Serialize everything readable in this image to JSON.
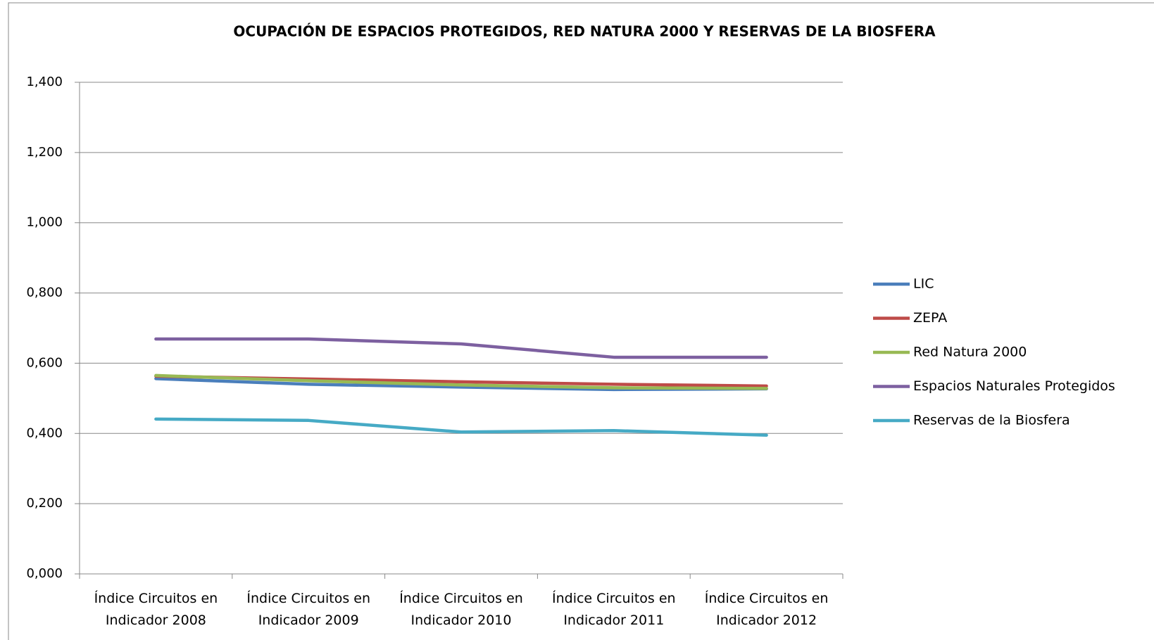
{
  "chart_data": {
    "type": "line",
    "title": "OCUPACIÓN DE ESPACIOS PROTEGIDOS, RED NATURA 2000  Y RESERVAS DE LA BIOSFERA",
    "categories": [
      "Índice Circuitos en Indicador 2008",
      "Índice Circuitos en Indicador 2009",
      "Índice Circuitos en Indicador 2010",
      "Índice Circuitos en Indicador 2011",
      "Índice Circuitos en Indicador 2012"
    ],
    "series": [
      {
        "name": "LIC",
        "color": "#4a7ebb",
        "values": [
          0.556,
          0.54,
          0.532,
          0.525,
          0.527
        ]
      },
      {
        "name": "ZEPA",
        "color": "#be4b48",
        "values": [
          0.563,
          0.555,
          0.547,
          0.54,
          0.535
        ]
      },
      {
        "name": "Red Natura 2000",
        "color": "#98b954",
        "values": [
          0.565,
          0.55,
          0.538,
          0.53,
          0.528
        ]
      },
      {
        "name": "Espacios Naturales Protegidos",
        "color": "#7d60a0",
        "values": [
          0.669,
          0.669,
          0.655,
          0.617,
          0.617
        ]
      },
      {
        "name": "Reservas de la Biosfera",
        "color": "#46aac5",
        "values": [
          0.441,
          0.437,
          0.404,
          0.408,
          0.395
        ]
      }
    ],
    "ylim": [
      0,
      1.4
    ],
    "yticks": [
      {
        "value": 0,
        "label": "0,000"
      },
      {
        "value": 0.2,
        "label": "0,200"
      },
      {
        "value": 0.4,
        "label": "0,400"
      },
      {
        "value": 0.6,
        "label": "0,600"
      },
      {
        "value": 0.8,
        "label": "0,800"
      },
      {
        "value": 1.0,
        "label": "1,000"
      },
      {
        "value": 1.2,
        "label": "1,200"
      },
      {
        "value": 1.4,
        "label": "1,400"
      }
    ],
    "grid": true,
    "legend": "right"
  }
}
